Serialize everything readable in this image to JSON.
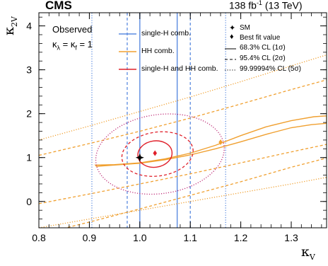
{
  "header": {
    "experiment": "CMS",
    "luminosity": "138 fb",
    "lumi_exponent": "-1",
    "energy": "(13 TeV)"
  },
  "chart_data": {
    "type": "line",
    "xlabel": "κ",
    "xlabel_sub": "V",
    "ylabel": "κ",
    "ylabel_sub": "2V",
    "xlim": [
      0.8,
      1.37
    ],
    "ylim": [
      -0.6,
      4.3
    ],
    "xticks": [
      0.8,
      0.9,
      1.0,
      1.1,
      1.2,
      1.3
    ],
    "xtick_labels": [
      "0.8",
      "0.9",
      "1.0",
      "1.1",
      "1.2",
      "1.3"
    ],
    "yticks": [
      0,
      1,
      2,
      3,
      4
    ],
    "ytick_labels": [
      "0",
      "1",
      "2",
      "3",
      "4"
    ],
    "grid": false,
    "annotation": {
      "status": "Observed",
      "condition": "κλ = κf = 1",
      "condition_parts": [
        "κ",
        "λ",
        " = κ",
        "f",
        " = 1"
      ]
    },
    "legend": {
      "placement": "top",
      "series_entries": [
        {
          "label": "single-H comb.",
          "color": "#5b8be0"
        },
        {
          "label": "HH comb.",
          "color": "#f0a030"
        },
        {
          "label": "single-H and HH comb.",
          "color": "#e0202a"
        }
      ],
      "marker_entries": [
        {
          "label": "SM",
          "symbol": "✦"
        },
        {
          "label": "Best fit value",
          "symbol": "♦"
        }
      ],
      "style_entries": [
        {
          "label": "68.3% CL (1σ)",
          "style": "solid"
        },
        {
          "label": "95.4% CL (2σ)",
          "style": "dashed"
        },
        {
          "label": "99.99994% CL (5σ)",
          "style": "dotted"
        }
      ]
    },
    "colors": {
      "single_h": "#5b8be0",
      "hh": "#f0a030",
      "combined": "#e0202a",
      "combined_5sigma": "#c0307a"
    },
    "sm_point": {
      "x": 1.0,
      "y": 1.0
    },
    "best_fit": [
      {
        "series": "single-H and HH comb.",
        "x": 1.03,
        "y": 1.1
      },
      {
        "series": "HH comb.",
        "x": 1.16,
        "y": 1.35
      }
    ],
    "series": [
      {
        "name": "single-H comb.",
        "cl": "1σ",
        "style": "solid",
        "vlines": [
          1.0,
          1.074
        ]
      },
      {
        "name": "single-H comb.",
        "cl": "2σ",
        "style": "dashed",
        "vlines": [
          0.975,
          1.1
        ]
      },
      {
        "name": "single-H comb.",
        "cl": "5σ",
        "style": "dotted",
        "vlines": [
          0.905,
          1.17
        ]
      },
      {
        "name": "HH comb.",
        "cl": "1σ",
        "style": "solid",
        "points": [
          [
            0.912,
            0.83
          ],
          [
            0.95,
            0.84
          ],
          [
            1.0,
            0.88
          ],
          [
            1.05,
            0.97
          ],
          [
            1.1,
            1.1
          ],
          [
            1.15,
            1.28
          ],
          [
            1.2,
            1.5
          ],
          [
            1.25,
            1.7
          ],
          [
            1.3,
            1.84
          ],
          [
            1.345,
            1.93
          ],
          [
            1.37,
            1.95
          ],
          [
            1.37,
            1.78
          ],
          [
            1.34,
            1.75
          ],
          [
            1.3,
            1.68
          ],
          [
            1.25,
            1.53
          ],
          [
            1.2,
            1.36
          ],
          [
            1.15,
            1.2
          ],
          [
            1.1,
            1.06
          ],
          [
            1.05,
            0.95
          ],
          [
            1.0,
            0.87
          ],
          [
            0.95,
            0.83
          ],
          [
            0.914,
            0.8
          ],
          [
            0.912,
            0.83
          ]
        ]
      },
      {
        "name": "HH comb.",
        "cl": "2σ",
        "style": "dashed",
        "upper": [
          [
            0.8,
            1.05
          ],
          [
            0.9,
            1.32
          ],
          [
            1.0,
            1.6
          ],
          [
            1.1,
            1.9
          ],
          [
            1.2,
            2.22
          ],
          [
            1.3,
            2.55
          ],
          [
            1.37,
            2.77
          ]
        ],
        "middle": [
          [
            0.8,
            -0.05
          ],
          [
            0.9,
            0.17
          ],
          [
            1.0,
            0.4
          ],
          [
            1.1,
            0.63
          ],
          [
            1.2,
            0.88
          ],
          [
            1.3,
            1.13
          ],
          [
            1.37,
            1.3
          ]
        ],
        "lower": [
          [
            0.8,
            -0.75
          ],
          [
            0.9,
            -0.47
          ],
          [
            1.0,
            -0.17
          ],
          [
            1.1,
            0.14
          ],
          [
            1.2,
            0.45
          ],
          [
            1.3,
            0.78
          ],
          [
            1.37,
            0.99
          ]
        ]
      },
      {
        "name": "HH comb.",
        "cl": "5σ",
        "style": "dotted",
        "upper": [
          [
            0.8,
            1.4
          ],
          [
            0.9,
            1.72
          ],
          [
            1.0,
            2.05
          ],
          [
            1.1,
            2.38
          ],
          [
            1.2,
            2.73
          ],
          [
            1.3,
            3.09
          ],
          [
            1.37,
            3.34
          ]
        ],
        "lower": [
          [
            0.8,
            -0.6
          ],
          [
            0.9,
            -0.4
          ],
          [
            1.0,
            -0.2
          ],
          [
            1.1,
            0.0
          ],
          [
            1.2,
            0.2
          ],
          [
            1.3,
            0.4
          ],
          [
            1.37,
            0.55
          ]
        ]
      },
      {
        "name": "single-H and HH comb.",
        "cl": "1σ",
        "style": "solid",
        "ellipse": {
          "cx": 1.03,
          "cy": 1.08,
          "rx": 0.034,
          "ry": 0.3
        }
      },
      {
        "name": "single-H and HH comb.",
        "cl": "2σ",
        "style": "dashed",
        "ellipse": {
          "cx": 1.035,
          "cy": 1.08,
          "rx": 0.071,
          "ry": 0.5
        }
      },
      {
        "name": "single-H and HH comb.",
        "cl": "5σ",
        "style": "dotted",
        "ellipse": {
          "cx": 1.04,
          "cy": 1.08,
          "rx": 0.128,
          "ry": 0.9
        }
      }
    ]
  }
}
